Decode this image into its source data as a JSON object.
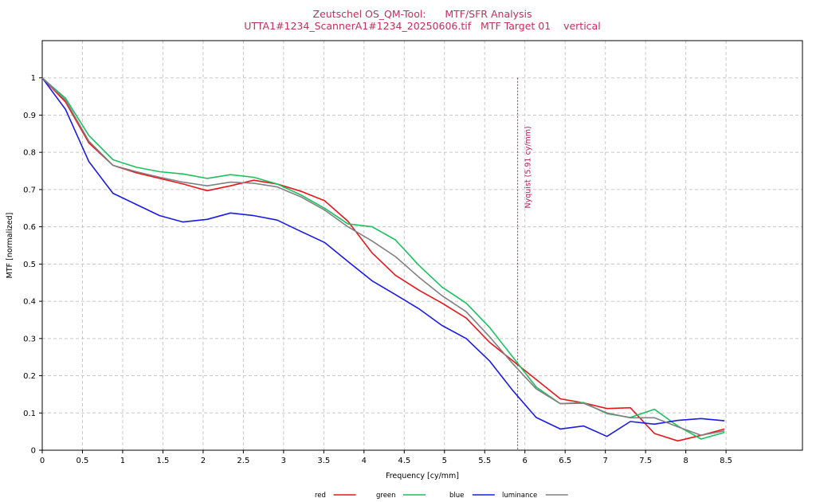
{
  "chart_data": {
    "type": "line",
    "title_line1": "Zeutschel OS_QM-Tool:      MTF/SFR Analysis",
    "title_line2": "UTTA1#1234_ScannerA1#1234_20250606.tif   MTF Target 01    vertical",
    "xlabel": "Frequency [cy/mm]",
    "ylabel": "MTF [normalized]",
    "xlim": [
      0,
      9.45
    ],
    "ylim": [
      0,
      1.1
    ],
    "xticks": [
      "0",
      "0.5",
      "1",
      "1.5",
      "2",
      "2.5",
      "3",
      "3.5",
      "4",
      "4.5",
      "5",
      "5.5",
      "6",
      "6.5",
      "7",
      "7.5",
      "8",
      "8.5"
    ],
    "yticks": [
      "0",
      "0.1",
      "0.2",
      "0.3",
      "0.4",
      "0.5",
      "0.6",
      "0.7",
      "0.8",
      "0.9",
      "1"
    ],
    "grid": true,
    "legend_position": "bottom",
    "nyquist": {
      "x": 5.91,
      "label": "Nyquist (5.91 cy/mm)",
      "color": "#9b2a5a"
    },
    "x": [
      0,
      0.29,
      0.58,
      0.88,
      1.17,
      1.46,
      1.75,
      2.05,
      2.34,
      2.63,
      2.92,
      3.22,
      3.51,
      3.8,
      4.1,
      4.39,
      4.68,
      4.97,
      5.27,
      5.56,
      5.85,
      6.14,
      6.44,
      6.73,
      7.02,
      7.31,
      7.61,
      7.9,
      8.19,
      8.48
    ],
    "series": [
      {
        "name": "red",
        "color": "#e8161b",
        "values": [
          1.0,
          0.935,
          0.825,
          0.765,
          0.745,
          0.73,
          0.715,
          0.697,
          0.71,
          0.725,
          0.715,
          0.695,
          0.67,
          0.615,
          0.53,
          0.47,
          0.43,
          0.395,
          0.355,
          0.29,
          0.24,
          0.19,
          0.138,
          0.127,
          0.112,
          0.114,
          0.045,
          0.025,
          0.04,
          0.057
        ]
      },
      {
        "name": "green",
        "color": "#19c25e",
        "values": [
          1.0,
          0.945,
          0.845,
          0.78,
          0.76,
          0.748,
          0.742,
          0.73,
          0.74,
          0.733,
          0.715,
          0.685,
          0.65,
          0.608,
          0.6,
          0.565,
          0.497,
          0.438,
          0.395,
          0.33,
          0.25,
          0.17,
          0.125,
          0.128,
          0.098,
          0.088,
          0.11,
          0.065,
          0.03,
          0.048
        ]
      },
      {
        "name": "blue",
        "color": "#1a1aeb",
        "values": [
          1.0,
          0.915,
          0.775,
          0.69,
          0.66,
          0.63,
          0.613,
          0.62,
          0.637,
          0.63,
          0.618,
          0.587,
          0.558,
          0.507,
          0.455,
          0.418,
          0.38,
          0.335,
          0.3,
          0.24,
          0.16,
          0.088,
          0.057,
          0.065,
          0.037,
          0.077,
          0.07,
          0.08,
          0.085,
          0.079
        ]
      },
      {
        "name": "luminance",
        "color": "#808080",
        "values": [
          1.0,
          0.94,
          0.83,
          0.765,
          0.748,
          0.733,
          0.72,
          0.71,
          0.72,
          0.717,
          0.707,
          0.68,
          0.645,
          0.6,
          0.562,
          0.52,
          0.465,
          0.415,
          0.372,
          0.305,
          0.232,
          0.165,
          0.125,
          0.126,
          0.1,
          0.087,
          0.087,
          0.063,
          0.04,
          0.052
        ]
      }
    ]
  }
}
